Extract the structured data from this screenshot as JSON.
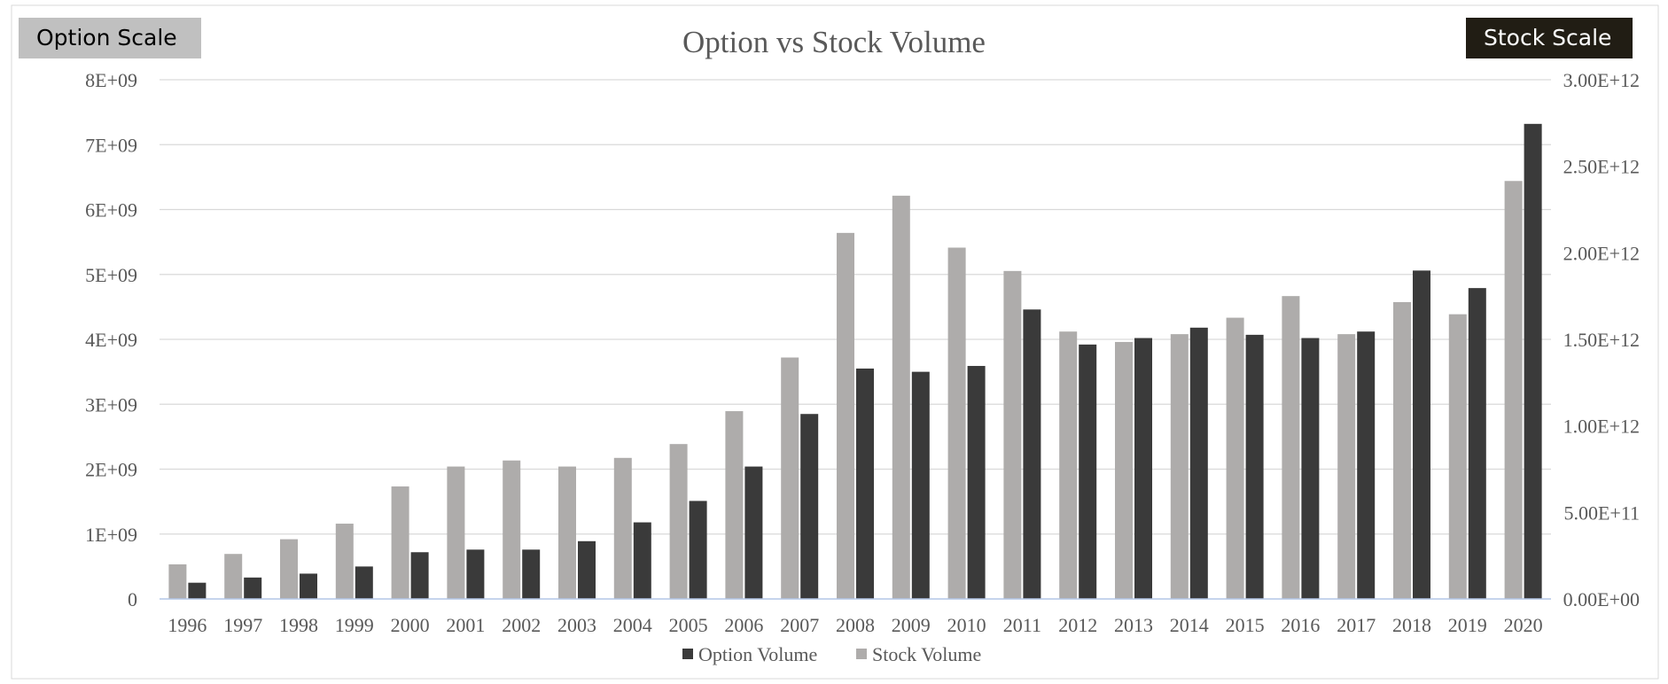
{
  "header": {
    "option_scale_label": "Option Scale",
    "stock_scale_label": "Stock Scale"
  },
  "colors": {
    "option_volume": "#3a3a3a",
    "stock_volume": "#aeacab",
    "gridline": "#d9d9d9",
    "baseline": "#b4c7e7",
    "text": "#595959",
    "option_scale_bg": "#c0c0c0",
    "stock_scale_bg": "#211d14"
  },
  "chart_data": {
    "type": "bar",
    "title": "Option vs Stock Volume",
    "xlabel": "",
    "ylabel": "",
    "categories": [
      "1996",
      "1997",
      "1998",
      "1999",
      "2000",
      "2001",
      "2002",
      "2003",
      "2004",
      "2005",
      "2006",
      "2007",
      "2008",
      "2009",
      "2010",
      "2011",
      "2012",
      "2013",
      "2014",
      "2015",
      "2016",
      "2017",
      "2018",
      "2019",
      "2020"
    ],
    "series": [
      {
        "name": "Stock Volume",
        "axis": "right",
        "values": [
          200000000000.0,
          260000000000.0,
          345000000000.0,
          435000000000.0,
          650000000000.0,
          765000000000.0,
          800000000000.0,
          765000000000.0,
          815000000000.0,
          895000000000.0,
          1085000000000.0,
          1395000000000.0,
          2115000000000.0,
          2330000000000.0,
          2030000000000.0,
          1895000000000.0,
          1545000000000.0,
          1485000000000.0,
          1530000000000.0,
          1625000000000.0,
          1750000000000.0,
          1530000000000.0,
          1715000000000.0,
          1645000000000.0,
          2415000000000.0
        ]
      },
      {
        "name": "Option Volume",
        "axis": "left",
        "values": [
          250000000.0,
          330000000.0,
          390000000.0,
          500000000.0,
          720000000.0,
          760000000.0,
          760000000.0,
          890000000.0,
          1180000000.0,
          1510000000.0,
          2040000000.0,
          2850000000.0,
          3550000000.0,
          3500000000.0,
          3590000000.0,
          4460000000.0,
          3920000000.0,
          4020000000.0,
          4180000000.0,
          4070000000.0,
          4020000000.0,
          4120000000.0,
          5060000000.0,
          4790000000.0,
          7320000000.0
        ]
      }
    ],
    "y_left": {
      "ylim": [
        0,
        8000000000
      ],
      "ticks": [
        0,
        1000000000,
        2000000000,
        3000000000,
        4000000000,
        5000000000,
        6000000000,
        7000000000,
        8000000000
      ],
      "tick_labels": [
        "0",
        "1E+09",
        "2E+09",
        "3E+09",
        "4E+09",
        "5E+09",
        "6E+09",
        "7E+09",
        "8E+09"
      ]
    },
    "y_right": {
      "ylim": [
        0,
        3000000000000
      ],
      "ticks": [
        0,
        500000000000,
        1000000000000,
        1500000000000,
        2000000000000,
        2500000000000,
        3000000000000
      ],
      "tick_labels": [
        "0.00E+00",
        "5.00E+11",
        "1.00E+12",
        "1.50E+12",
        "2.00E+12",
        "2.50E+12",
        "3.00E+12"
      ]
    },
    "legend": {
      "position": "bottom",
      "entries": [
        "Option Volume",
        "Stock Volume"
      ]
    },
    "grid": true
  }
}
